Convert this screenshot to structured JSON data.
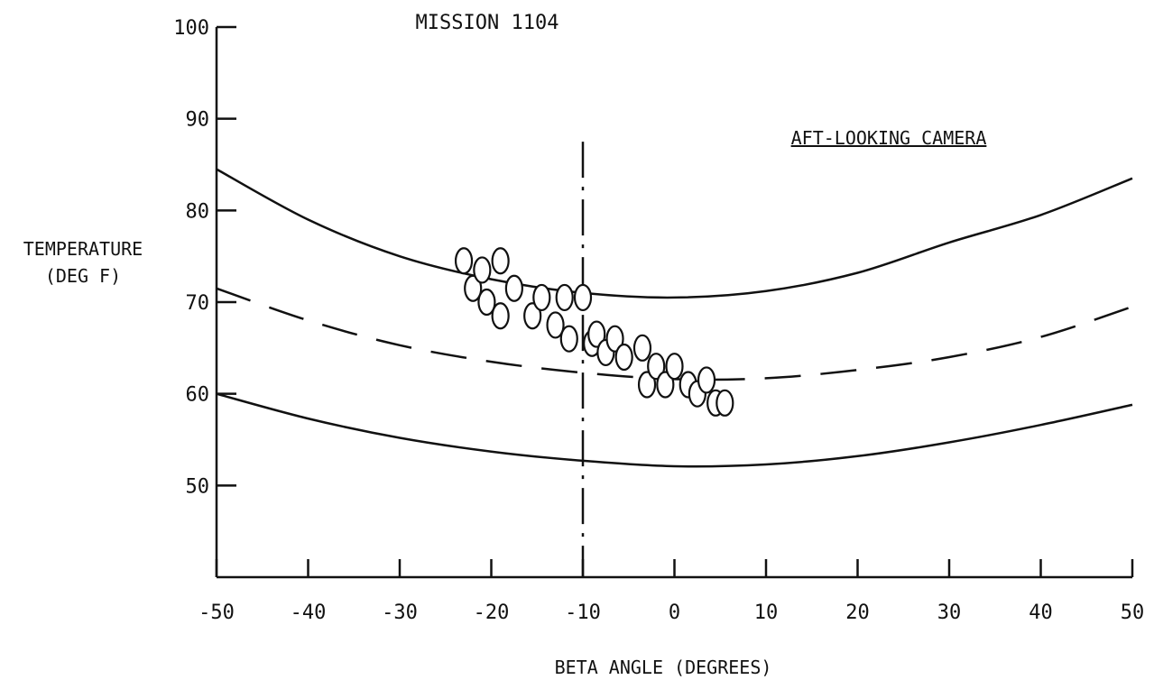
{
  "chart_data": {
    "type": "scatter",
    "title": "MISSION 1104",
    "annotation": "AFT-LOOKING CAMERA",
    "xlabel": "BETA ANGLE (DEGREES)",
    "ylabel_line1": "TEMPERATURE",
    "ylabel_line2": "(DEG F)",
    "xlim": [
      -50,
      50
    ],
    "ylim": [
      40,
      100
    ],
    "x_ticks": [
      -50,
      -40,
      -30,
      -20,
      -10,
      0,
      10,
      20,
      30,
      40,
      50
    ],
    "x_tick_labels": [
      "-50",
      "-40",
      "-30",
      "-20",
      "-10",
      "0",
      "10",
      "20",
      "30",
      "40",
      "50"
    ],
    "y_ticks": [
      50,
      60,
      70,
      80,
      90,
      100
    ],
    "y_tick_labels": [
      "50",
      "60",
      "70",
      "80",
      "90",
      "100"
    ],
    "grid": false,
    "reference_line_x": -10,
    "series": [
      {
        "style": "solid",
        "x": [
          -50,
          -40,
          -30,
          -20,
          -10,
          0,
          10,
          20,
          30,
          40,
          50
        ],
        "values": [
          84.5,
          79,
          75,
          72.5,
          71,
          70.5,
          71.2,
          73.2,
          76.5,
          79.5,
          83.5
        ]
      },
      {
        "style": "dashed",
        "x": [
          -50,
          -40,
          -30,
          -20,
          -10,
          0,
          10,
          20,
          30,
          40,
          50
        ],
        "values": [
          71.5,
          68,
          65.3,
          63.5,
          62.3,
          61.6,
          61.7,
          62.6,
          64,
          66.2,
          69.5
        ]
      },
      {
        "style": "solid",
        "x": [
          -50,
          -40,
          -30,
          -20,
          -10,
          0,
          10,
          20,
          30,
          40,
          50
        ],
        "values": [
          60,
          57.3,
          55.2,
          53.7,
          52.7,
          52.1,
          52.3,
          53.2,
          54.7,
          56.6,
          58.8
        ]
      },
      {
        "style": "markers",
        "x": [
          -23,
          -22,
          -21,
          -20.5,
          -19,
          -19,
          -17.5,
          -15.5,
          -14.5,
          -13,
          -12,
          -11.5,
          -10,
          -9,
          -8.5,
          -7.5,
          -6.5,
          -5.5,
          -3.5,
          -3,
          -2,
          -1,
          0,
          1.5,
          2.5,
          3.5,
          4.5,
          5.5
        ],
        "values": [
          74.5,
          71.5,
          73.5,
          70,
          74.5,
          68.5,
          71.5,
          68.5,
          70.5,
          67.5,
          70.5,
          66,
          70.5,
          65.5,
          66.5,
          64.5,
          66,
          64,
          65,
          61,
          63,
          61,
          63,
          61,
          60,
          61.5,
          59,
          59
        ]
      }
    ]
  }
}
